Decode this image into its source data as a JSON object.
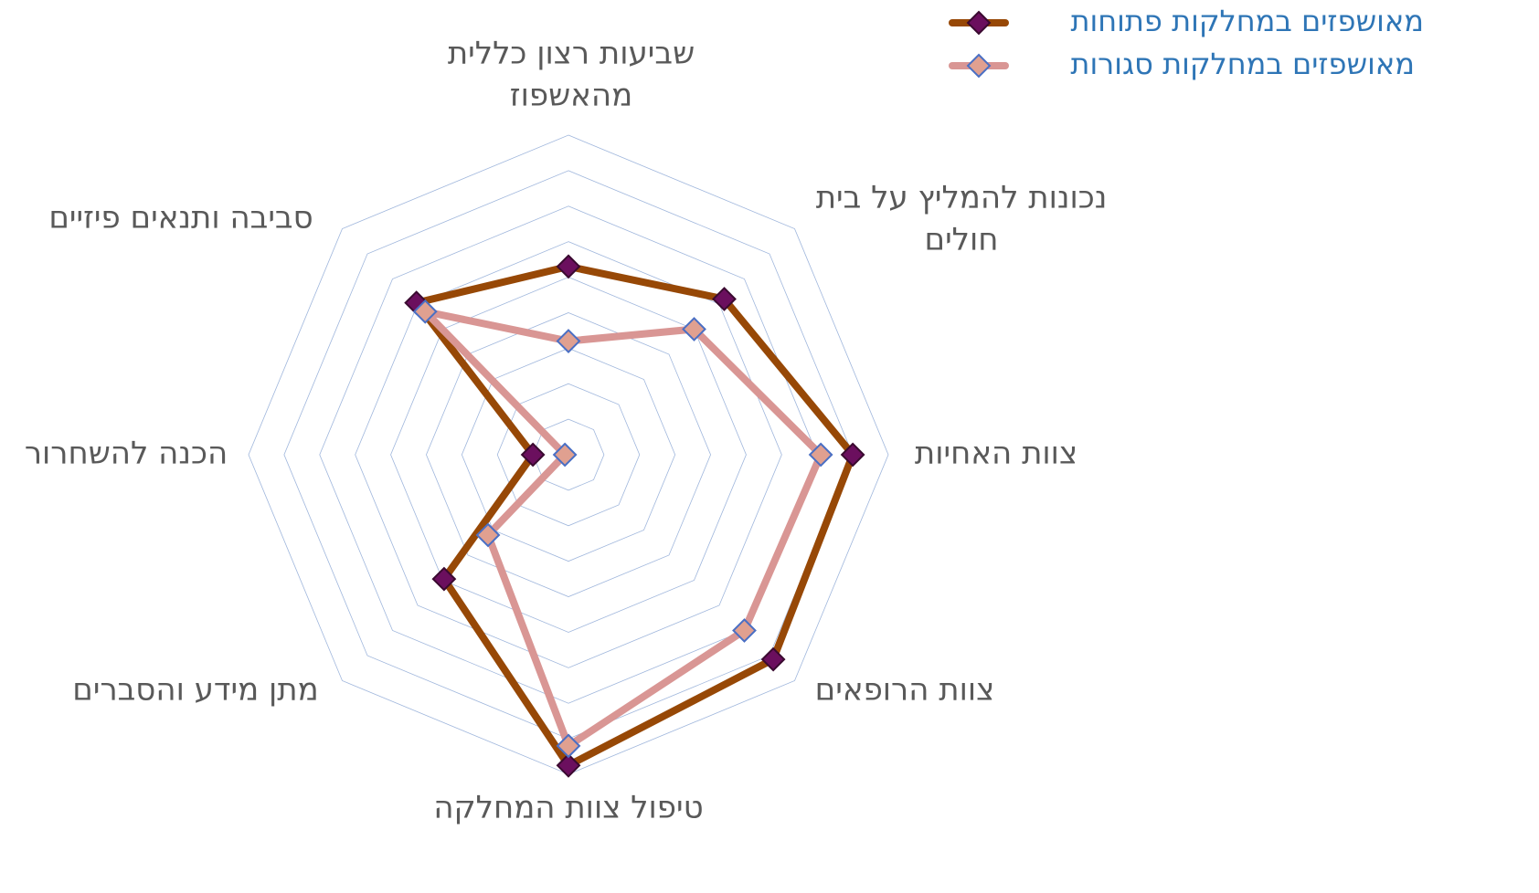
{
  "chart_data": {
    "type": "radar",
    "categories": [
      [
        "שביעות רצון כללית",
        "מהאשפוז"
      ],
      [
        "נכונות להמליץ על בית",
        "חולים"
      ],
      [
        "צוות האחיות"
      ],
      [
        "צוות הרופאים"
      ],
      [
        "טיפול צוות המחלקה"
      ],
      [
        "מתן מידע והסברים"
      ],
      [
        "הכנה להשחרור"
      ],
      [
        "סביבה ותנאים פיזיים"
      ]
    ],
    "series": [
      {
        "name": "מאושפזים במחלקות פתוחות",
        "color": "#974806",
        "marker_color": "#6b0f5e",
        "marker_edge": "#3a0a30",
        "values": [
          5.3,
          6.2,
          8.0,
          8.15,
          8.75,
          4.95,
          1.0,
          6.05
        ]
      },
      {
        "name": "מאושפזים במחלקות סגורות",
        "color": "#d99694",
        "marker_color": "#e0a090",
        "marker_edge": "#4a6fc4",
        "values": [
          3.2,
          5.0,
          7.1,
          7.0,
          8.2,
          3.2,
          0.1,
          5.7
        ]
      }
    ],
    "rlim": [
      0,
      9
    ],
    "rticks": [
      1,
      2,
      3,
      4,
      5,
      6,
      7,
      8,
      9
    ],
    "grid": true,
    "legend": "top-right"
  }
}
